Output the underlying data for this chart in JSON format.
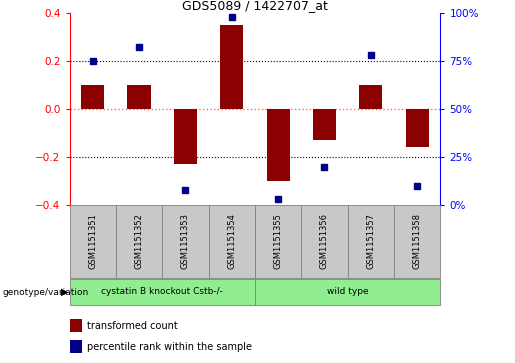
{
  "title": "GDS5089 / 1422707_at",
  "samples": [
    "GSM1151351",
    "GSM1151352",
    "GSM1151353",
    "GSM1151354",
    "GSM1151355",
    "GSM1151356",
    "GSM1151357",
    "GSM1151358"
  ],
  "transformed_count": [
    0.1,
    0.1,
    -0.23,
    0.35,
    -0.3,
    -0.13,
    0.1,
    -0.16
  ],
  "percentile_rank": [
    75,
    82,
    8,
    98,
    3,
    20,
    78,
    10
  ],
  "ylim_left": [
    -0.4,
    0.4
  ],
  "ylim_right": [
    0,
    100
  ],
  "yticks_left": [
    -0.4,
    -0.2,
    0.0,
    0.2,
    0.4
  ],
  "yticks_right": [
    0,
    25,
    50,
    75,
    100
  ],
  "bar_color": "#8B0000",
  "dot_color": "#00008B",
  "zero_line_color": "#FF6666",
  "grid_color": "#000000",
  "groups": [
    {
      "label": "cystatin B knockout Cstb-/-",
      "start": 0,
      "end": 3,
      "color": "#90EE90"
    },
    {
      "label": "wild type",
      "start": 4,
      "end": 7,
      "color": "#90EE90"
    }
  ],
  "genotype_label": "genotype/variation",
  "legend_red": "transformed count",
  "legend_blue": "percentile rank within the sample",
  "sample_box_color": "#C8C8C8",
  "sample_box_edge": "#808080"
}
